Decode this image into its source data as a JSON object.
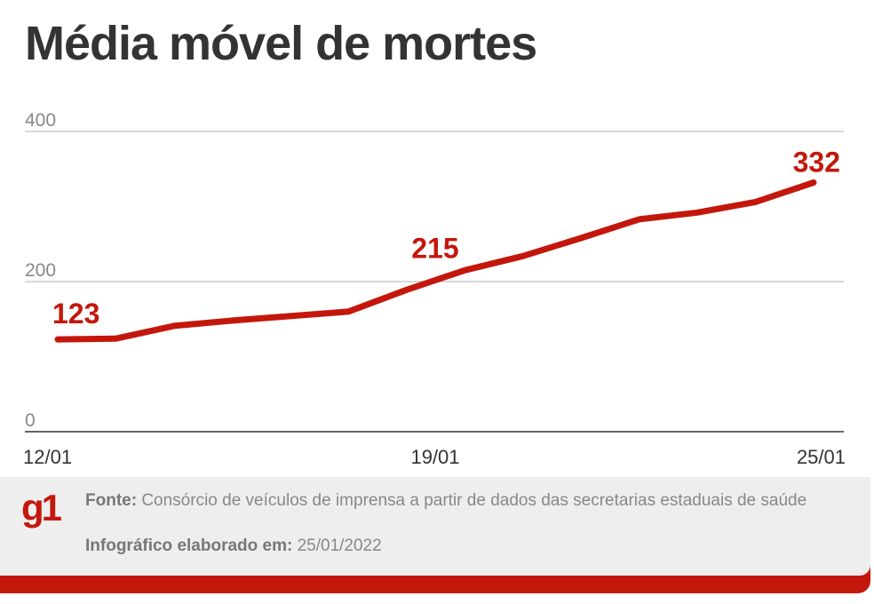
{
  "chart_data": {
    "type": "line",
    "title": "Média móvel de mortes",
    "xlabel": "",
    "ylabel": "",
    "ylim": [
      0,
      400
    ],
    "yticks": [
      "0",
      "200",
      "400"
    ],
    "xtick_labels": [
      "12/01",
      "19/01",
      "25/01"
    ],
    "grid": true,
    "x": [
      "12/01",
      "13/01",
      "14/01",
      "15/01",
      "16/01",
      "17/01",
      "18/01",
      "19/01",
      "20/01",
      "21/01",
      "22/01",
      "23/01",
      "24/01",
      "25/01"
    ],
    "series": [
      {
        "name": "Média móvel de mortes",
        "color": "#c4170c",
        "values": [
          123,
          124,
          141,
          148,
          154,
          160,
          189,
          215,
          234,
          258,
          283,
          292,
          306,
          332
        ]
      }
    ],
    "annotations": [
      {
        "x": "12/01",
        "label": "123"
      },
      {
        "x": "19/01",
        "label": "215"
      },
      {
        "x": "25/01",
        "label": "332"
      }
    ]
  },
  "footer": {
    "logo": "g1",
    "source_label": "Fonte:",
    "source_text": "Consórcio de veículos de imprensa a partir de dados das secretarias estaduais de saúde",
    "made_label": "Infográfico elaborado em:",
    "made_date": "25/01/2022"
  }
}
